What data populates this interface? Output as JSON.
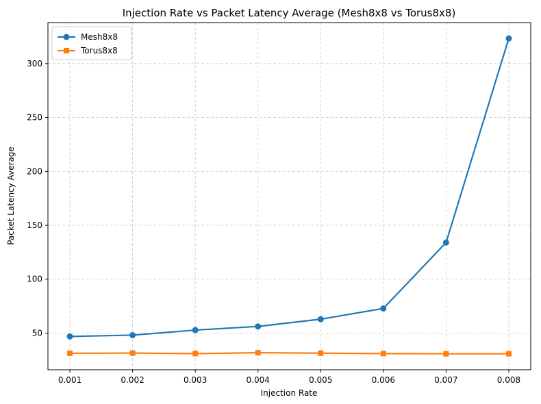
{
  "chart_data": {
    "type": "line",
    "title": "Injection Rate vs Packet Latency Average (Mesh8x8 vs Torus8x8)",
    "xlabel": "Injection Rate",
    "ylabel": "Packet Latency Average",
    "x": [
      0.001,
      0.002,
      0.003,
      0.004,
      0.005,
      0.006,
      0.007,
      0.008
    ],
    "x_tick_labels": [
      "0.001",
      "0.002",
      "0.003",
      "0.004",
      "0.005",
      "0.006",
      "0.007",
      "0.008"
    ],
    "xlim": [
      0.00065,
      0.00835
    ],
    "y_ticks": [
      50,
      100,
      150,
      200,
      250,
      300
    ],
    "ylim": [
      16,
      338
    ],
    "grid": true,
    "legend_position": "top-left",
    "series": [
      {
        "name": "Mesh8x8",
        "color": "#1f77b4",
        "marker": "circle",
        "values": [
          46.9,
          48.1,
          52.8,
          56.2,
          62.9,
          72.9,
          134.0,
          323.3
        ]
      },
      {
        "name": "Torus8x8",
        "color": "#ff7f0e",
        "marker": "square",
        "values": [
          31.3,
          31.5,
          31.0,
          31.8,
          31.4,
          31.0,
          30.8,
          30.8
        ]
      }
    ]
  }
}
